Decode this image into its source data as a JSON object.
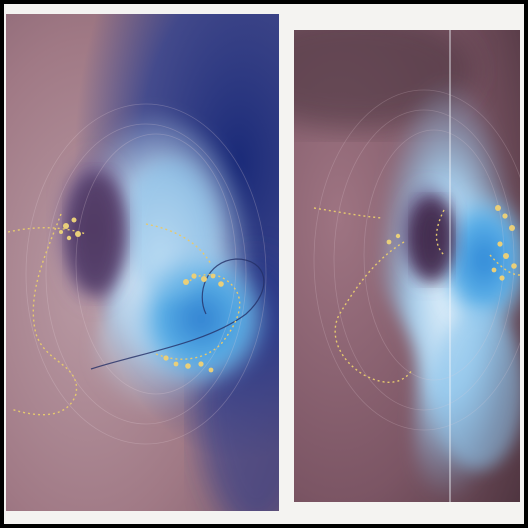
{
  "artwork": {
    "panel_count": 2,
    "colors": {
      "frame": "#000000",
      "mat": "#f4f3f1",
      "mauve": "#a27883",
      "mauve_dark": "#6e4c57",
      "navy": "#1f2f7a",
      "sky": "#52a6e0",
      "ice": "#e3f0fb",
      "plum": "#4d3a5e",
      "gold": "#e6c96e"
    }
  }
}
